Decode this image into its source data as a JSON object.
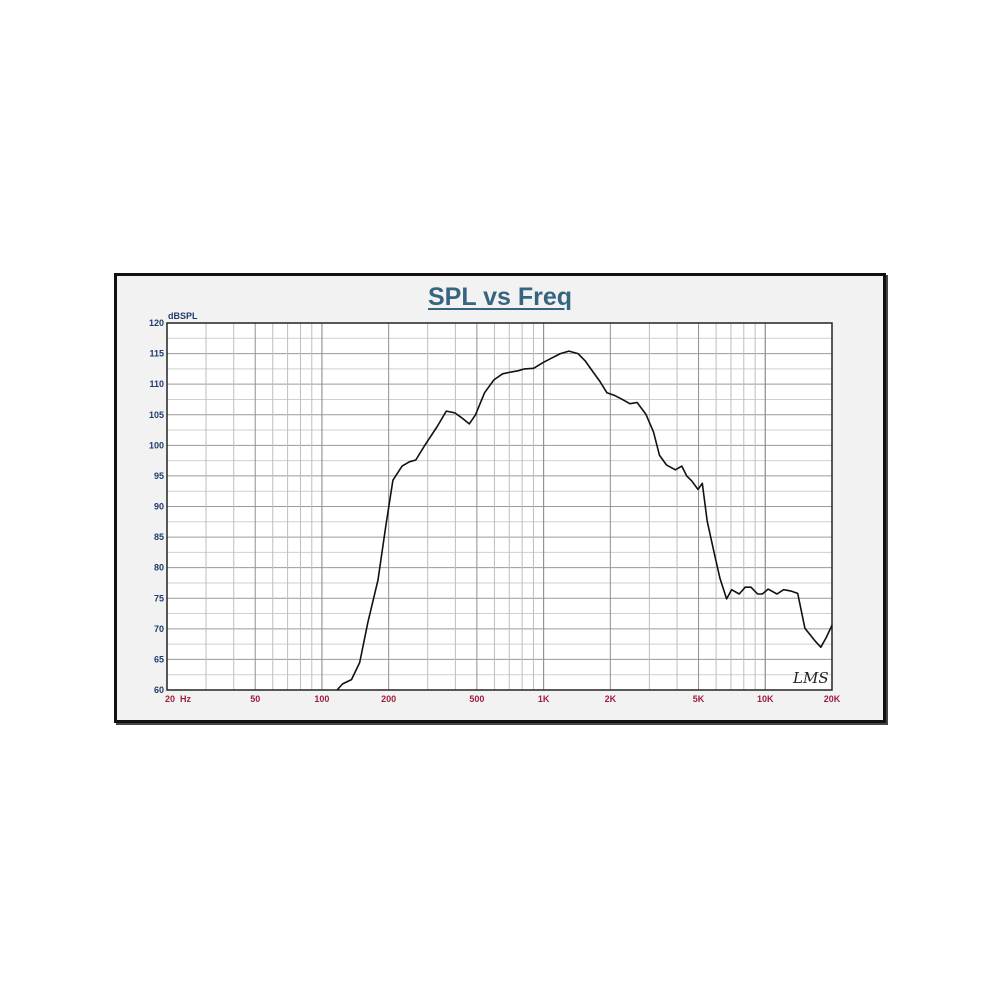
{
  "chart_data": {
    "type": "line",
    "title": "SPL vs Freq",
    "ylabel": "dBSPL",
    "xlabel": "",
    "x_scale": "log",
    "xlim": [
      20,
      20000
    ],
    "ylim": [
      60,
      120
    ],
    "grid": true,
    "x_tick_labels": [
      "20  Hz",
      "50",
      "100",
      "200",
      "500",
      "1K",
      "2K",
      "5K",
      "10K",
      "20K"
    ],
    "x_tick_values": [
      20,
      50,
      100,
      200,
      500,
      1000,
      2000,
      5000,
      10000,
      20000
    ],
    "y_ticks": [
      60,
      65,
      70,
      75,
      80,
      85,
      90,
      95,
      100,
      105,
      110,
      115,
      120
    ],
    "watermark": "LMS",
    "colors": {
      "line": "#111111",
      "title": "#35657f",
      "y_labels": "#1f3a6e",
      "x_labels": "#a01e3c",
      "grid": "#b4b4b4"
    },
    "series": [
      {
        "x": [
          117,
          124,
          136,
          148,
          161,
          179,
          194,
          209,
          230,
          248,
          265,
          291,
          330,
          364,
          398,
          427,
          462,
          493,
          542,
          597,
          653,
          717,
          770,
          820,
          901,
          990,
          1090,
          1190,
          1300,
          1430,
          1540,
          1670,
          1790,
          1930,
          2080,
          2240,
          2450,
          2640,
          2890,
          3130,
          3330,
          3580,
          3930,
          4200,
          4420,
          4650,
          4970,
          5200,
          5470,
          5880,
          6240,
          6690,
          7050,
          7630,
          8120,
          8620,
          9230,
          9700,
          10300,
          11300,
          12100,
          13000,
          14000,
          15100,
          16800,
          17800,
          18800,
          20000
        ],
        "y": [
          60,
          61,
          61.7,
          64.5,
          71,
          78,
          86.7,
          94.3,
          96.6,
          97.3,
          97.6,
          100,
          103,
          105.6,
          105.3,
          104.5,
          103.5,
          105,
          108.6,
          110.7,
          111.7,
          112,
          112.2,
          112.5,
          112.6,
          113.5,
          114.3,
          115,
          115.4,
          115,
          113.8,
          112,
          110.5,
          108.6,
          108.2,
          107.6,
          106.8,
          107,
          105.1,
          102.2,
          98.4,
          96.8,
          96,
          96.6,
          95,
          94.2,
          92.8,
          93.8,
          87.6,
          82.4,
          78.3,
          74.9,
          76.4,
          75.7,
          76.8,
          76.8,
          75.7,
          75.7,
          76.5,
          75.7,
          76.4,
          76.2,
          75.8,
          70.1,
          68,
          67,
          68.5,
          70.6
        ]
      }
    ]
  }
}
